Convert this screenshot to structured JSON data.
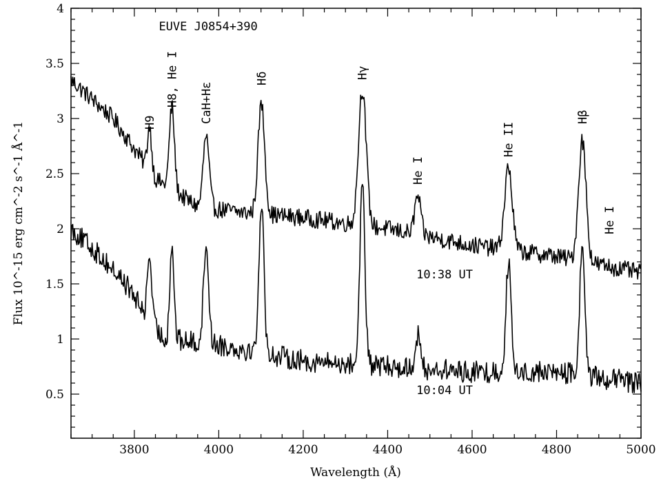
{
  "chart_data": {
    "type": "line",
    "title": "EUVE J0854+390",
    "xlabel": "Wavelength (Å)",
    "ylabel": "Flux 10^-15 erg cm^-2 s^-1 Å^-1",
    "xlim": [
      3650,
      5000
    ],
    "ylim": [
      0.1,
      4.0
    ],
    "xticks": [
      3800,
      4000,
      4200,
      4400,
      4600,
      4800,
      5000
    ],
    "yticks": [
      0.5,
      1,
      1.5,
      2,
      2.5,
      3,
      3.5,
      4
    ],
    "grid": false,
    "series": [
      {
        "name": "10:38 UT",
        "continuum": [
          [
            3650,
            3.35
          ],
          [
            3750,
            3.0
          ],
          [
            3850,
            2.45
          ],
          [
            3950,
            2.2
          ],
          [
            4050,
            2.15
          ],
          [
            4200,
            2.1
          ],
          [
            4400,
            2.0
          ],
          [
            4600,
            1.85
          ],
          [
            4800,
            1.75
          ],
          [
            5000,
            1.6
          ]
        ],
        "lines": [
          [
            3836,
            0.4,
            5
          ],
          [
            3889,
            0.75,
            6
          ],
          [
            3970,
            0.65,
            7
          ],
          [
            4101,
            1.0,
            8
          ],
          [
            4340,
            1.25,
            9
          ],
          [
            4471,
            0.35,
            7
          ],
          [
            4686,
            0.75,
            9
          ],
          [
            4861,
            1.1,
            9
          ]
        ],
        "noise": 0.08
      },
      {
        "name": "10:04 UT",
        "continuum": [
          [
            3650,
            2.0
          ],
          [
            3720,
            1.75
          ],
          [
            3780,
            1.5
          ],
          [
            3830,
            1.2
          ],
          [
            3870,
            1.0
          ],
          [
            4000,
            0.95
          ],
          [
            4200,
            0.8
          ],
          [
            4400,
            0.75
          ],
          [
            4600,
            0.7
          ],
          [
            4800,
            0.7
          ],
          [
            5000,
            0.6
          ]
        ],
        "lines": [
          [
            3836,
            0.6,
            5
          ],
          [
            3889,
            0.85,
            5
          ],
          [
            3970,
            0.9,
            6
          ],
          [
            4101,
            1.35,
            6
          ],
          [
            4340,
            1.65,
            6
          ],
          [
            4471,
            0.3,
            6
          ],
          [
            4686,
            1.0,
            6
          ],
          [
            4861,
            1.2,
            6
          ]
        ],
        "noise": 0.1
      }
    ],
    "annotations": [
      {
        "text": "EUVE J0854+390",
        "x": 3975,
        "y": 3.8,
        "rotate": false
      },
      {
        "text": "H9",
        "x": 3836,
        "y": 2.9,
        "rotate": true
      },
      {
        "text": "H8, He I",
        "x": 3889,
        "y": 3.1,
        "rotate": true
      },
      {
        "text": "CaH+Hε",
        "x": 3970,
        "y": 2.95,
        "rotate": true
      },
      {
        "text": "Hδ",
        "x": 4101,
        "y": 3.3,
        "rotate": true
      },
      {
        "text": "Hγ",
        "x": 4340,
        "y": 3.35,
        "rotate": true
      },
      {
        "text": "He I",
        "x": 4471,
        "y": 2.4,
        "rotate": true
      },
      {
        "text": "He II",
        "x": 4686,
        "y": 2.65,
        "rotate": true
      },
      {
        "text": "Hβ",
        "x": 4861,
        "y": 2.95,
        "rotate": true
      },
      {
        "text": "He I",
        "x": 4925,
        "y": 1.95,
        "rotate": true
      },
      {
        "text": "10:38 UT",
        "x": 4535,
        "y": 1.55,
        "rotate": false
      },
      {
        "text": "10:04 UT",
        "x": 4535,
        "y": 0.5,
        "rotate": false
      }
    ]
  }
}
